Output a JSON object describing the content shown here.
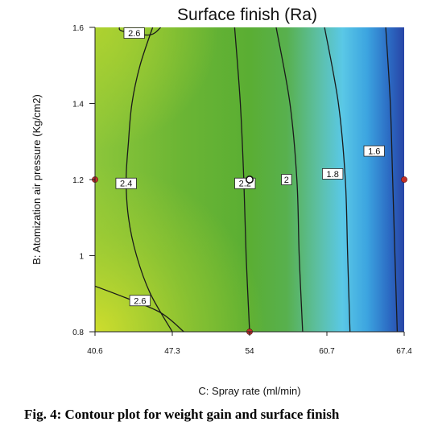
{
  "chart_data": {
    "type": "contour",
    "title": "Surface finish (Ra)",
    "xlabel": "C: Spray rate  (ml/min)",
    "ylabel": "B: Atomization air pressure  (Kg/cm2)",
    "xlim": [
      40.6,
      67.4
    ],
    "ylim": [
      0.8,
      1.6
    ],
    "x_ticks": [
      "40.6",
      "47.3",
      "54",
      "60.7",
      "67.4"
    ],
    "x_tick_values": [
      40.6,
      47.3,
      54,
      60.7,
      67.4
    ],
    "y_ticks": [
      "0.8",
      "1",
      "1.2",
      "1.4",
      "1.6"
    ],
    "y_tick_values": [
      0.8,
      1.0,
      1.2,
      1.4,
      1.6
    ],
    "contour_levels": [
      {
        "level": "2.6",
        "points": [
          [
            42.7,
            1.6
          ],
          [
            43.0,
            1.59
          ],
          [
            45.3,
            1.58
          ],
          [
            46.3,
            1.6
          ]
        ]
      },
      {
        "level": "2.4",
        "points": [
          [
            45.6,
            1.6
          ],
          [
            44.5,
            1.5
          ],
          [
            43.8,
            1.4
          ],
          [
            43.5,
            1.3
          ],
          [
            43.3,
            1.2
          ],
          [
            43.5,
            1.1
          ],
          [
            44.2,
            1.0
          ],
          [
            45.4,
            0.9
          ],
          [
            47.3,
            0.8
          ]
        ]
      },
      {
        "level": "2.2",
        "points": [
          [
            52.7,
            1.6
          ],
          [
            53.2,
            1.4
          ],
          [
            53.5,
            1.2
          ],
          [
            53.7,
            1.0
          ],
          [
            54.0,
            0.8
          ]
        ]
      },
      {
        "level": "2",
        "points": [
          [
            56.3,
            1.6
          ],
          [
            57.5,
            1.4
          ],
          [
            58.1,
            1.2
          ],
          [
            58.3,
            1.0
          ],
          [
            58.6,
            0.8
          ]
        ]
      },
      {
        "level": "1.8",
        "points": [
          [
            60.5,
            1.6
          ],
          [
            61.7,
            1.4
          ],
          [
            62.3,
            1.2
          ],
          [
            62.5,
            1.0
          ],
          [
            62.7,
            0.8
          ]
        ]
      },
      {
        "level": "1.6",
        "points": [
          [
            65.8,
            1.6
          ],
          [
            66.2,
            1.4
          ],
          [
            66.4,
            1.2
          ],
          [
            66.6,
            1.0
          ],
          [
            66.8,
            0.8
          ]
        ]
      },
      {
        "level": "2.6",
        "points": [
          [
            40.6,
            0.92
          ],
          [
            43.2,
            0.89
          ],
          [
            46.3,
            0.85
          ],
          [
            48.3,
            0.8
          ]
        ]
      }
    ],
    "contour_labels": [
      {
        "text": "2.6",
        "x": 44.0,
        "y": 1.585
      },
      {
        "text": "2.4",
        "x": 43.3,
        "y": 1.19
      },
      {
        "text": "2.2",
        "x": 53.6,
        "y": 1.19
      },
      {
        "text": "2",
        "x": 57.2,
        "y": 1.2
      },
      {
        "text": "1.8",
        "x": 61.2,
        "y": 1.215
      },
      {
        "text": "1.6",
        "x": 64.8,
        "y": 1.275
      },
      {
        "text": "2.6",
        "x": 44.5,
        "y": 0.882
      }
    ],
    "design_points": [
      {
        "x": 40.6,
        "y": 1.2
      },
      {
        "x": 67.4,
        "y": 1.2
      },
      {
        "x": 54,
        "y": 0.8
      },
      {
        "x": 54,
        "y": 1.2,
        "center": true
      }
    ],
    "colors": {
      "high": "#c8dc2a",
      "mid": "#5cb030",
      "low_light": "#58c8f0",
      "low_dark": "#2848a8",
      "point": "#c0302a",
      "line": "#1a1a1a"
    },
    "grid": false,
    "legend": "none"
  },
  "caption": "Fig. 4: Contour plot for weight gain and surface finish"
}
